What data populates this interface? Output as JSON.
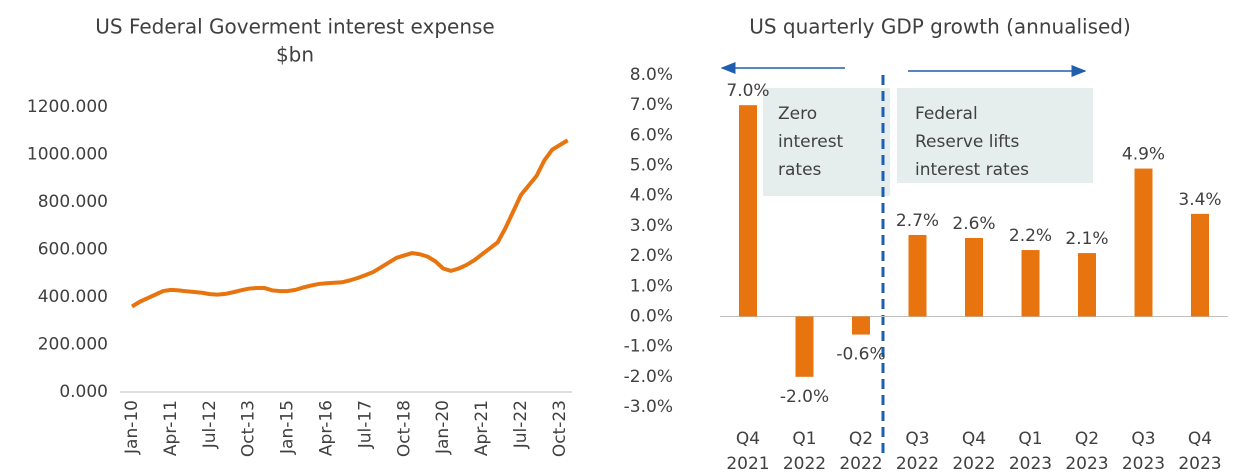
{
  "chart_data": [
    {
      "type": "line",
      "title": "US Federal Goverment interest expense",
      "subtitle": "$bn",
      "color": "#e8740f",
      "categories": [
        "Jan-10",
        null,
        null,
        null,
        null,
        "Apr-11",
        null,
        null,
        null,
        null,
        "Jul-12",
        null,
        null,
        null,
        null,
        "Oct-13",
        null,
        null,
        null,
        null,
        "Jan-15",
        null,
        null,
        null,
        null,
        "Apr-16",
        null,
        null,
        null,
        null,
        "Jul-17",
        null,
        null,
        null,
        null,
        "Oct-18",
        null,
        null,
        null,
        null,
        "Jan-20",
        null,
        null,
        null,
        null,
        "Apr-21",
        null,
        null,
        null,
        null,
        "Jul-22",
        null,
        null,
        null,
        null,
        "Oct-23",
        null
      ],
      "values": [
        360,
        380,
        395,
        410,
        425,
        430,
        428,
        424,
        421,
        418,
        412,
        410,
        413,
        420,
        428,
        435,
        438,
        438,
        428,
        425,
        425,
        430,
        440,
        448,
        455,
        458,
        460,
        462,
        470,
        480,
        492,
        505,
        525,
        545,
        565,
        575,
        585,
        580,
        570,
        550,
        520,
        510,
        520,
        535,
        555,
        580,
        605,
        630,
        690,
        760,
        830,
        870,
        910,
        975,
        1020,
        1040,
        1060
      ],
      "ylim": [
        0,
        1200
      ],
      "yticks": [
        {
          "value": 0,
          "label": "0.000"
        },
        {
          "value": 200,
          "label": "200.000"
        },
        {
          "value": 400,
          "label": "400.000"
        },
        {
          "value": 600,
          "label": "600.000"
        },
        {
          "value": 800,
          "label": "800.000"
        },
        {
          "value": 1000,
          "label": "1000.000"
        },
        {
          "value": 1200,
          "label": "1200.000"
        }
      ]
    },
    {
      "type": "bar",
      "title": "US quarterly GDP growth (annualised)",
      "color": "#e8740f",
      "categories": [
        [
          "Q4",
          "2021"
        ],
        [
          "Q1",
          "2022"
        ],
        [
          "Q2",
          "2022"
        ],
        [
          "Q3",
          "2022"
        ],
        [
          "Q4",
          "2022"
        ],
        [
          "Q1",
          "2023"
        ],
        [
          "Q2",
          "2023"
        ],
        [
          "Q3",
          "2023"
        ],
        [
          "Q4",
          "2023"
        ]
      ],
      "values": [
        7.0,
        -2.0,
        -0.6,
        2.7,
        2.6,
        2.2,
        2.1,
        4.9,
        3.4
      ],
      "value_labels": [
        "7.0%",
        "-2.0%",
        "-0.6%",
        "2.7%",
        "2.6%",
        "2.2%",
        "2.1%",
        "4.9%",
        "3.4%"
      ],
      "ylim": [
        -3,
        8
      ],
      "yticks": [
        {
          "value": -3,
          "label": "-3.0%"
        },
        {
          "value": -2,
          "label": "-2.0%"
        },
        {
          "value": -1,
          "label": "-1.0%"
        },
        {
          "value": 0,
          "label": "0.0%"
        },
        {
          "value": 1,
          "label": "1.0%"
        },
        {
          "value": 2,
          "label": "2.0%"
        },
        {
          "value": 3,
          "label": "3.0%"
        },
        {
          "value": 4,
          "label": "4.0%"
        },
        {
          "value": 5,
          "label": "5.0%"
        },
        {
          "value": 6,
          "label": "6.0%"
        },
        {
          "value": 7,
          "label": "7.0%"
        },
        {
          "value": 8,
          "label": "8.0%"
        }
      ],
      "annotations": [
        [
          "Zero",
          "interest",
          "rates"
        ],
        [
          "Federal",
          "Reserve lifts",
          "interest rates"
        ]
      ]
    }
  ]
}
